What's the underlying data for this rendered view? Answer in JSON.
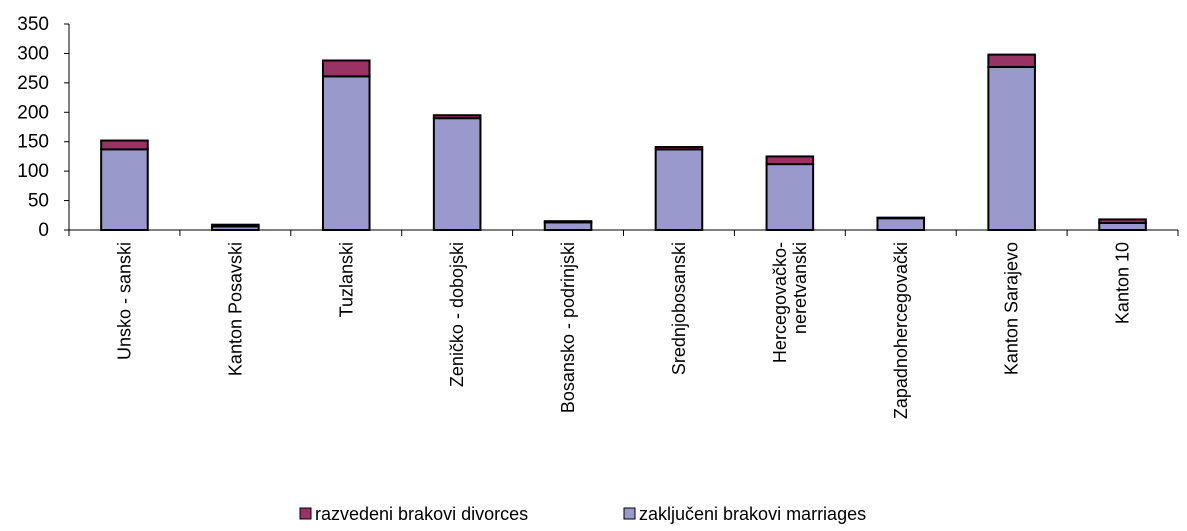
{
  "chart_data": {
    "type": "bar",
    "stacked": true,
    "title": "",
    "xlabel": "",
    "ylabel": "",
    "ylim": [
      0,
      350
    ],
    "yticks": [
      0,
      50,
      100,
      150,
      200,
      250,
      300,
      350
    ],
    "grid": false,
    "legend_position": "bottom",
    "categories": [
      "Unsko - sanski",
      "Kanton Posavski",
      "Tuzlanski",
      "Zeničko - dobojski",
      "Bosansko - podrinjski",
      "Srednjobosanski",
      "Hercegovačko-neretvanski",
      "Zapadnohercegovački",
      "Kanton Sarajevo",
      "Kanton 10"
    ],
    "category_lines": [
      [
        "Unsko - sanski"
      ],
      [
        "Kanton Posavski"
      ],
      [
        "Tuzlanski"
      ],
      [
        "Zeničko - dobojski"
      ],
      [
        "Bosansko - podrinjski"
      ],
      [
        "Srednjobosanski"
      ],
      [
        "Hercegovačko-",
        "neretvanski"
      ],
      [
        "Zapadnohercegovački"
      ],
      [
        "Kanton Sarajevo"
      ],
      [
        "Kanton 10"
      ]
    ],
    "series": [
      {
        "name": "zaključeni brakovi marriages",
        "color": "#9999cc",
        "values": [
          137,
          6,
          261,
          190,
          13,
          137,
          112,
          20,
          277,
          12
        ]
      },
      {
        "name": "razvedeni brakovi divorces",
        "color": "#993366",
        "values": [
          15,
          3,
          27,
          5,
          2,
          4,
          13,
          1,
          21,
          6
        ]
      }
    ],
    "legend_order": [
      "razvedeni brakovi divorces",
      "zaključeni brakovi marriages"
    ]
  }
}
